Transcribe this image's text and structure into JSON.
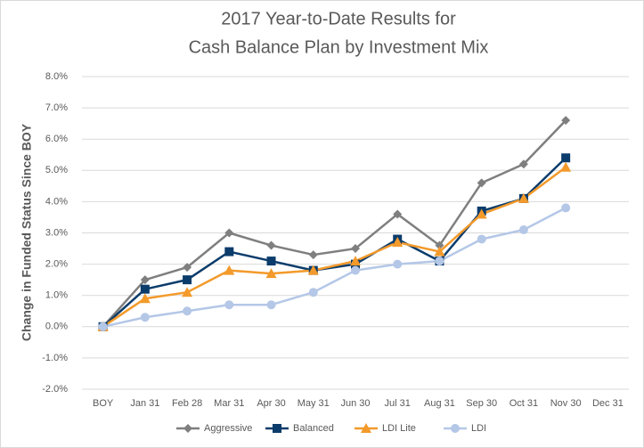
{
  "chart_data": {
    "type": "line",
    "title": [
      "2017 Year-to-Date Results for",
      "Cash Balance Plan by Investment Mix"
    ],
    "y_label": "Change in Funded Status Since BOY",
    "categories": [
      "BOY",
      "Jan 31",
      "Feb 28",
      "Mar 31",
      "Apr 30",
      "May 31",
      "Jun 30",
      "Jul 31",
      "Aug 31",
      "Sep 30",
      "Oct 31",
      "Nov 30",
      "Dec 31"
    ],
    "series": [
      {
        "name": "Aggressive",
        "color": "#7f7f7f",
        "marker": "diamond",
        "values": [
          0,
          1.5,
          1.9,
          3.0,
          2.6,
          2.3,
          2.5,
          3.6,
          2.6,
          4.6,
          5.2,
          6.6,
          null
        ]
      },
      {
        "name": "Balanced",
        "color": "#0b3c6b",
        "marker": "square",
        "values": [
          0,
          1.2,
          1.5,
          2.4,
          2.1,
          1.8,
          2.0,
          2.8,
          2.1,
          3.7,
          4.1,
          5.4,
          null
        ]
      },
      {
        "name": "LDI Lite",
        "color": "#f39a2b",
        "marker": "triangle",
        "values": [
          0,
          0.9,
          1.1,
          1.8,
          1.7,
          1.8,
          2.1,
          2.7,
          2.4,
          3.6,
          4.1,
          5.1,
          null
        ]
      },
      {
        "name": "LDI",
        "color": "#b4c7e7",
        "marker": "circle",
        "values": [
          0,
          0.3,
          0.5,
          0.7,
          0.7,
          1.1,
          1.8,
          2.0,
          2.1,
          2.8,
          3.1,
          3.8,
          null
        ]
      }
    ],
    "ylim": [
      -2,
      8
    ],
    "yticks": [
      {
        "value": -2,
        "label": "-2.0%"
      },
      {
        "value": -1,
        "label": "-1.0%"
      },
      {
        "value": 0,
        "label": "0.0%"
      },
      {
        "value": 1,
        "label": "1.0%"
      },
      {
        "value": 2,
        "label": "2.0%"
      },
      {
        "value": 3,
        "label": "3.0%"
      },
      {
        "value": 4,
        "label": "4.0%"
      },
      {
        "value": 5,
        "label": "5.0%"
      },
      {
        "value": 6,
        "label": "6.0%"
      },
      {
        "value": 7,
        "label": "7.0%"
      },
      {
        "value": 8,
        "label": "8.0%"
      }
    ],
    "grid": true,
    "legend": "bottom"
  }
}
